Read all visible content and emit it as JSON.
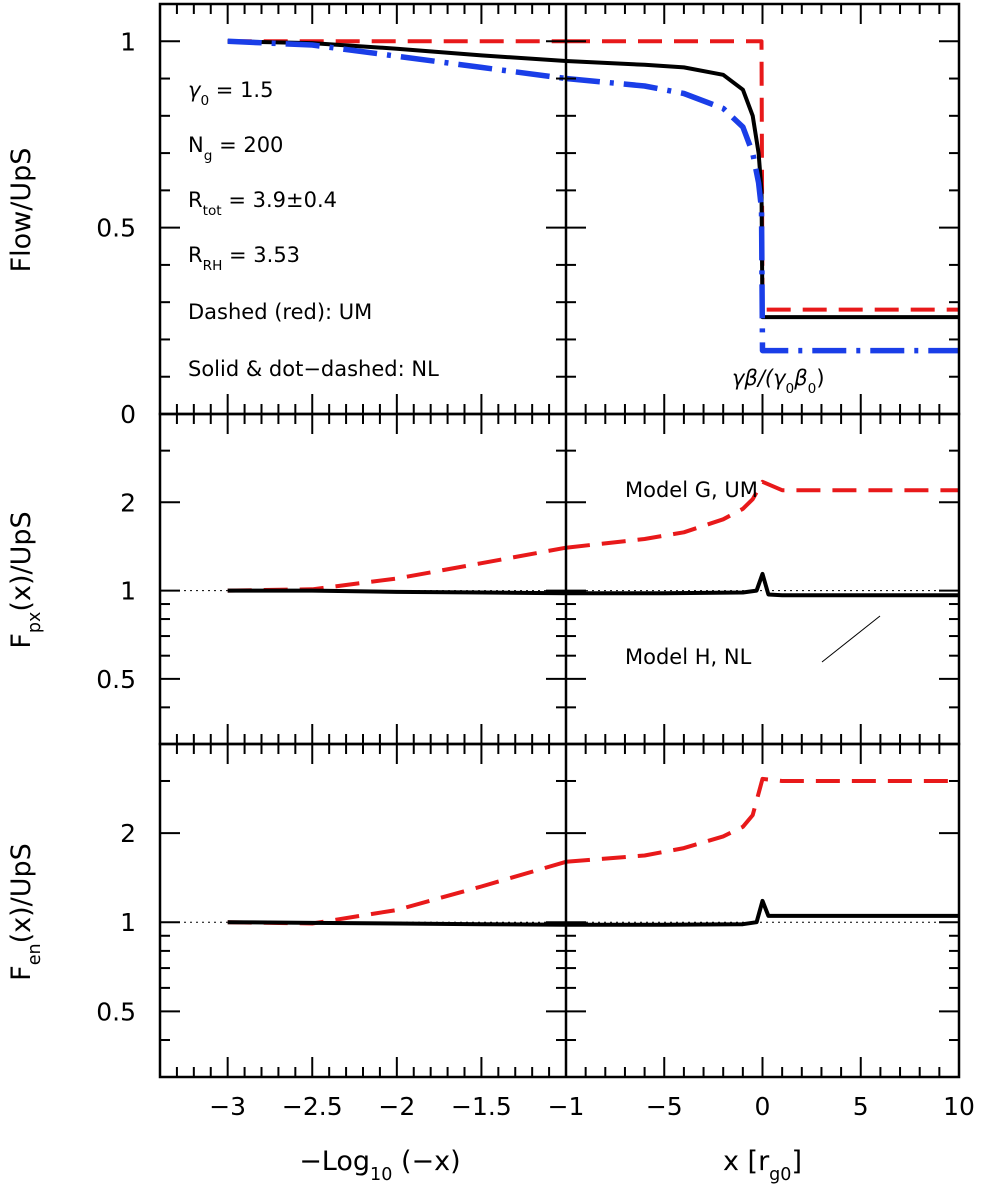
{
  "chart_data": [
    {
      "type": "line",
      "panel": "top",
      "ylabel": "Flow/UpS",
      "ylim": [
        0,
        1.1
      ],
      "yticks": [
        "0",
        "0.5",
        "1"
      ],
      "annotations": {
        "gamma": {
          "sym": "γ",
          "sub": "0",
          "rest": " = 1.5"
        },
        "ng": {
          "sym": "N",
          "sub": "g",
          "rest": " = 200"
        },
        "rtot": {
          "sym": "R",
          "sub": "tot",
          "rest": " = 3.9±0.4"
        },
        "rrh": {
          "sym": "R",
          "sub": "RH",
          "rest": " = 3.53"
        },
        "dashed": "Dashed (red): UM",
        "solid": "Solid & dot−dashed: NL",
        "gb": {
          "a": "γβ/(γ",
          "sub1": "0",
          "b": "β",
          "sub2": "0",
          "c": ")"
        }
      },
      "series": [
        {
          "style": "dashed",
          "color": "#e8191a",
          "left": {
            "x": [
              -3,
              -1
            ],
            "y": [
              1.0,
              1.0
            ]
          },
          "right": {
            "x": [
              -10,
              -0.05,
              0,
              10
            ],
            "y": [
              1.0,
              1.0,
              0.28,
              0.28
            ]
          }
        },
        {
          "style": "solid",
          "color": "#000000",
          "left": {
            "x": [
              -3,
              -2.5,
              -2,
              -1.5,
              -1
            ],
            "y": [
              1.0,
              0.995,
              0.98,
              0.962,
              0.947
            ]
          },
          "right": {
            "x": [
              -10,
              -6,
              -4,
              -2,
              -1,
              -0.5,
              -0.2,
              -0.05,
              0,
              10
            ],
            "y": [
              0.947,
              0.937,
              0.93,
              0.91,
              0.87,
              0.8,
              0.7,
              0.6,
              0.26,
              0.26
            ]
          }
        },
        {
          "style": "dotdash",
          "color": "#1a3ee8",
          "left": {
            "x": [
              -3,
              -2.5,
              -2,
              -1.5,
              -1
            ],
            "y": [
              1.0,
              0.99,
              0.96,
              0.93,
              0.9
            ]
          },
          "right": {
            "x": [
              -10,
              -6,
              -4,
              -2,
              -1,
              -0.5,
              -0.2,
              -0.05,
              0,
              10
            ],
            "y": [
              0.9,
              0.88,
              0.86,
              0.82,
              0.77,
              0.7,
              0.62,
              0.55,
              0.17,
              0.17
            ]
          }
        }
      ]
    },
    {
      "type": "line",
      "panel": "middle",
      "ylabel": {
        "a": "F",
        "sub": "px",
        "b": "(x)/UpS"
      },
      "yscale": "log",
      "ylim": [
        0.3,
        4.0
      ],
      "yticks": [
        "0.5",
        "1",
        "2"
      ],
      "labels": {
        "model_g": "Model G, UM",
        "model_h": "Model H, NL"
      },
      "reference_line": 1.0,
      "series": [
        {
          "style": "dashed",
          "color": "#e8191a",
          "left": {
            "x": [
              -3,
              -2.5,
              -2,
              -1.5,
              -1
            ],
            "y": [
              1.0,
              1.01,
              1.1,
              1.24,
              1.4
            ]
          },
          "right": {
            "x": [
              -10,
              -6,
              -4,
              -2,
              -1,
              -0.5,
              0,
              1,
              10
            ],
            "y": [
              1.4,
              1.5,
              1.58,
              1.75,
              1.9,
              2.05,
              2.35,
              2.2,
              2.2
            ]
          }
        },
        {
          "style": "solid",
          "color": "#000000",
          "left": {
            "x": [
              -3,
              -2.5,
              -2,
              -1.5,
              -1
            ],
            "y": [
              1.0,
              1.0,
              0.99,
              0.985,
              0.98
            ]
          },
          "right": {
            "x": [
              -10,
              -5,
              -1,
              -0.3,
              0,
              0.3,
              1,
              10
            ],
            "y": [
              0.98,
              0.98,
              0.985,
              1.0,
              1.14,
              0.97,
              0.965,
              0.965
            ]
          }
        }
      ]
    },
    {
      "type": "line",
      "panel": "bottom",
      "ylabel": {
        "a": "F",
        "sub": "en",
        "b": "(x)/UpS"
      },
      "yscale": "log",
      "ylim": [
        0.3,
        4.0
      ],
      "yticks": [
        "0.5",
        "1",
        "2"
      ],
      "reference_line": 1.0,
      "xticks_left": [
        "−3",
        "−2.5",
        "−2",
        "−1.5",
        "−1"
      ],
      "xticks_right": [
        "−5",
        "0",
        "5",
        "10"
      ],
      "xlabel_left": {
        "a": "−Log",
        "sub": "10",
        "b": " (−x)"
      },
      "xlabel_right": {
        "a": "x [r",
        "sub": "g0",
        "b": "]"
      },
      "series": [
        {
          "style": "dashed",
          "color": "#e8191a",
          "left": {
            "x": [
              -3,
              -2.5,
              -2,
              -1.5,
              -1
            ],
            "y": [
              1.0,
              0.99,
              1.1,
              1.32,
              1.6
            ]
          },
          "right": {
            "x": [
              -10,
              -6,
              -4,
              -2,
              -1,
              -0.5,
              0,
              1,
              10
            ],
            "y": [
              1.6,
              1.68,
              1.78,
              1.95,
              2.1,
              2.3,
              3.05,
              3.0,
              3.0
            ]
          }
        },
        {
          "style": "solid",
          "color": "#000000",
          "left": {
            "x": [
              -3,
              -2.5,
              -2,
              -1.5,
              -1
            ],
            "y": [
              1.0,
              0.995,
              0.99,
              0.985,
              0.98
            ]
          },
          "right": {
            "x": [
              -10,
              -5,
              -1,
              -0.3,
              0,
              0.3,
              1,
              10
            ],
            "y": [
              0.98,
              0.98,
              0.985,
              1.0,
              1.18,
              1.05,
              1.05,
              1.05
            ]
          }
        }
      ]
    }
  ]
}
